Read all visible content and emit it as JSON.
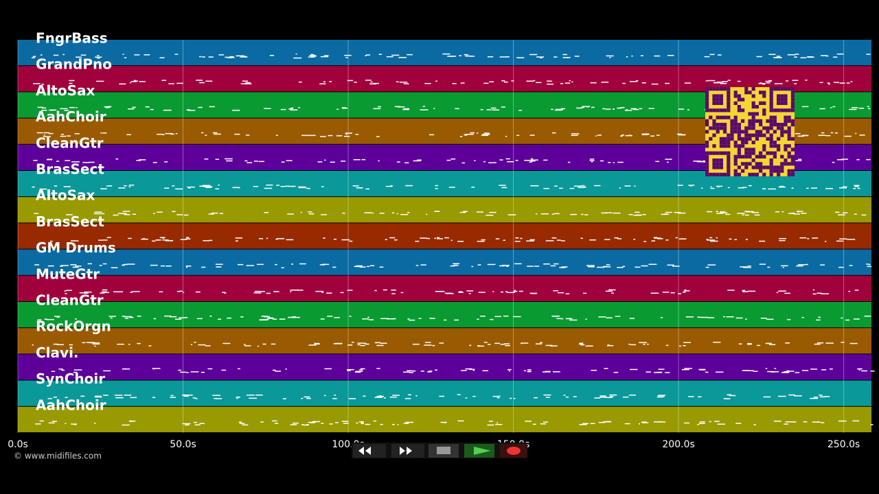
{
  "timeline": {
    "tracks": [
      {
        "name": "FngrBass",
        "color": "#0b6aa2"
      },
      {
        "name": "GrandPno",
        "color": "#a0003c"
      },
      {
        "name": "AltoSax",
        "color": "#0a9a32"
      },
      {
        "name": "AahChoir",
        "color": "#9a5a00"
      },
      {
        "name": "CleanGtr",
        "color": "#5c0099"
      },
      {
        "name": "BrasSect",
        "color": "#0a9898"
      },
      {
        "name": "AltoSax",
        "color": "#999900"
      },
      {
        "name": "BrasSect",
        "color": "#982a00"
      },
      {
        "name": "GM Drums",
        "color": "#0b6aa2"
      },
      {
        "name": "MuteGtr",
        "color": "#a0003c"
      },
      {
        "name": "CleanGtr",
        "color": "#0a9a32"
      },
      {
        "name": "RockOrgn",
        "color": "#9a5a00"
      },
      {
        "name": "Clavi.",
        "color": "#5c0099"
      },
      {
        "name": "SynChoir",
        "color": "#0a9898"
      },
      {
        "name": "AahChoir",
        "color": "#999900"
      }
    ],
    "xlim": [
      0,
      258.4
    ],
    "xticks": [
      {
        "value": 0,
        "label": "0.0s"
      },
      {
        "value": 50,
        "label": "50.0s"
      },
      {
        "value": 100,
        "label": "100.0s"
      },
      {
        "value": 150,
        "label": "150.0s"
      },
      {
        "value": 200,
        "label": "200.0s"
      },
      {
        "value": 250,
        "label": "250.0s"
      }
    ],
    "copyright": "© www.midifiles.com"
  }
}
